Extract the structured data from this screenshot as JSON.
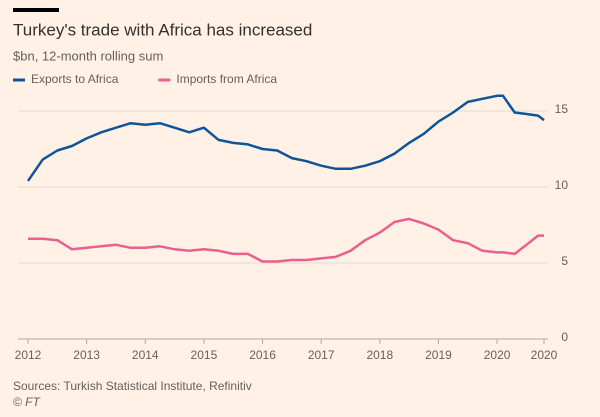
{
  "chart_data": {
    "type": "line",
    "title": "Turkey's trade with Africa has increased",
    "subtitle": "$bn, 12-month rolling sum",
    "source": "Sources: Turkish Statistical Institute, Refinitiv",
    "credit": "© FT",
    "x": [
      2012,
      2012.25,
      2012.5,
      2012.75,
      2013,
      2013.25,
      2013.5,
      2013.75,
      2014,
      2014.25,
      2014.5,
      2014.75,
      2015,
      2015.25,
      2015.5,
      2015.75,
      2016,
      2016.25,
      2016.5,
      2016.75,
      2017,
      2017.25,
      2017.5,
      2017.75,
      2018,
      2018.25,
      2018.5,
      2018.75,
      2019,
      2019.25,
      2019.5,
      2019.75,
      2020,
      2020.1,
      2020.3,
      2020.5,
      2020.7,
      2020.8
    ],
    "series": [
      {
        "name": "Exports to Africa",
        "color": "#0f5499",
        "values": [
          10.4,
          11.8,
          12.4,
          12.7,
          13.2,
          13.6,
          13.9,
          14.2,
          14.1,
          14.2,
          13.9,
          13.6,
          13.9,
          13.1,
          12.9,
          12.8,
          12.5,
          12.4,
          11.9,
          11.7,
          11.4,
          11.2,
          11.2,
          11.4,
          11.7,
          12.2,
          12.9,
          13.5,
          14.3,
          14.9,
          15.6,
          15.8,
          16.0,
          16.0,
          14.9,
          14.8,
          14.7,
          14.4
        ]
      },
      {
        "name": "Imports from Africa",
        "color": "#eb5e8d",
        "values": [
          6.6,
          6.6,
          6.5,
          5.9,
          6.0,
          6.1,
          6.2,
          6.0,
          6.0,
          6.1,
          5.9,
          5.8,
          5.9,
          5.8,
          5.6,
          5.6,
          5.1,
          5.1,
          5.2,
          5.2,
          5.3,
          5.4,
          5.8,
          6.5,
          7.0,
          7.7,
          7.9,
          7.6,
          7.2,
          6.5,
          6.3,
          5.8,
          5.7,
          5.7,
          5.6,
          6.2,
          6.8,
          6.8
        ]
      }
    ],
    "xlim": [
      2012,
      2020.8
    ],
    "xticks": [
      2012,
      2013,
      2014,
      2015,
      2016,
      2017,
      2018,
      2019,
      2020,
      {
        "value": 2020.8,
        "label": "2020"
      }
    ],
    "ylim": [
      0,
      17
    ],
    "yticks": [
      0,
      5,
      10,
      15
    ],
    "grid": true
  }
}
